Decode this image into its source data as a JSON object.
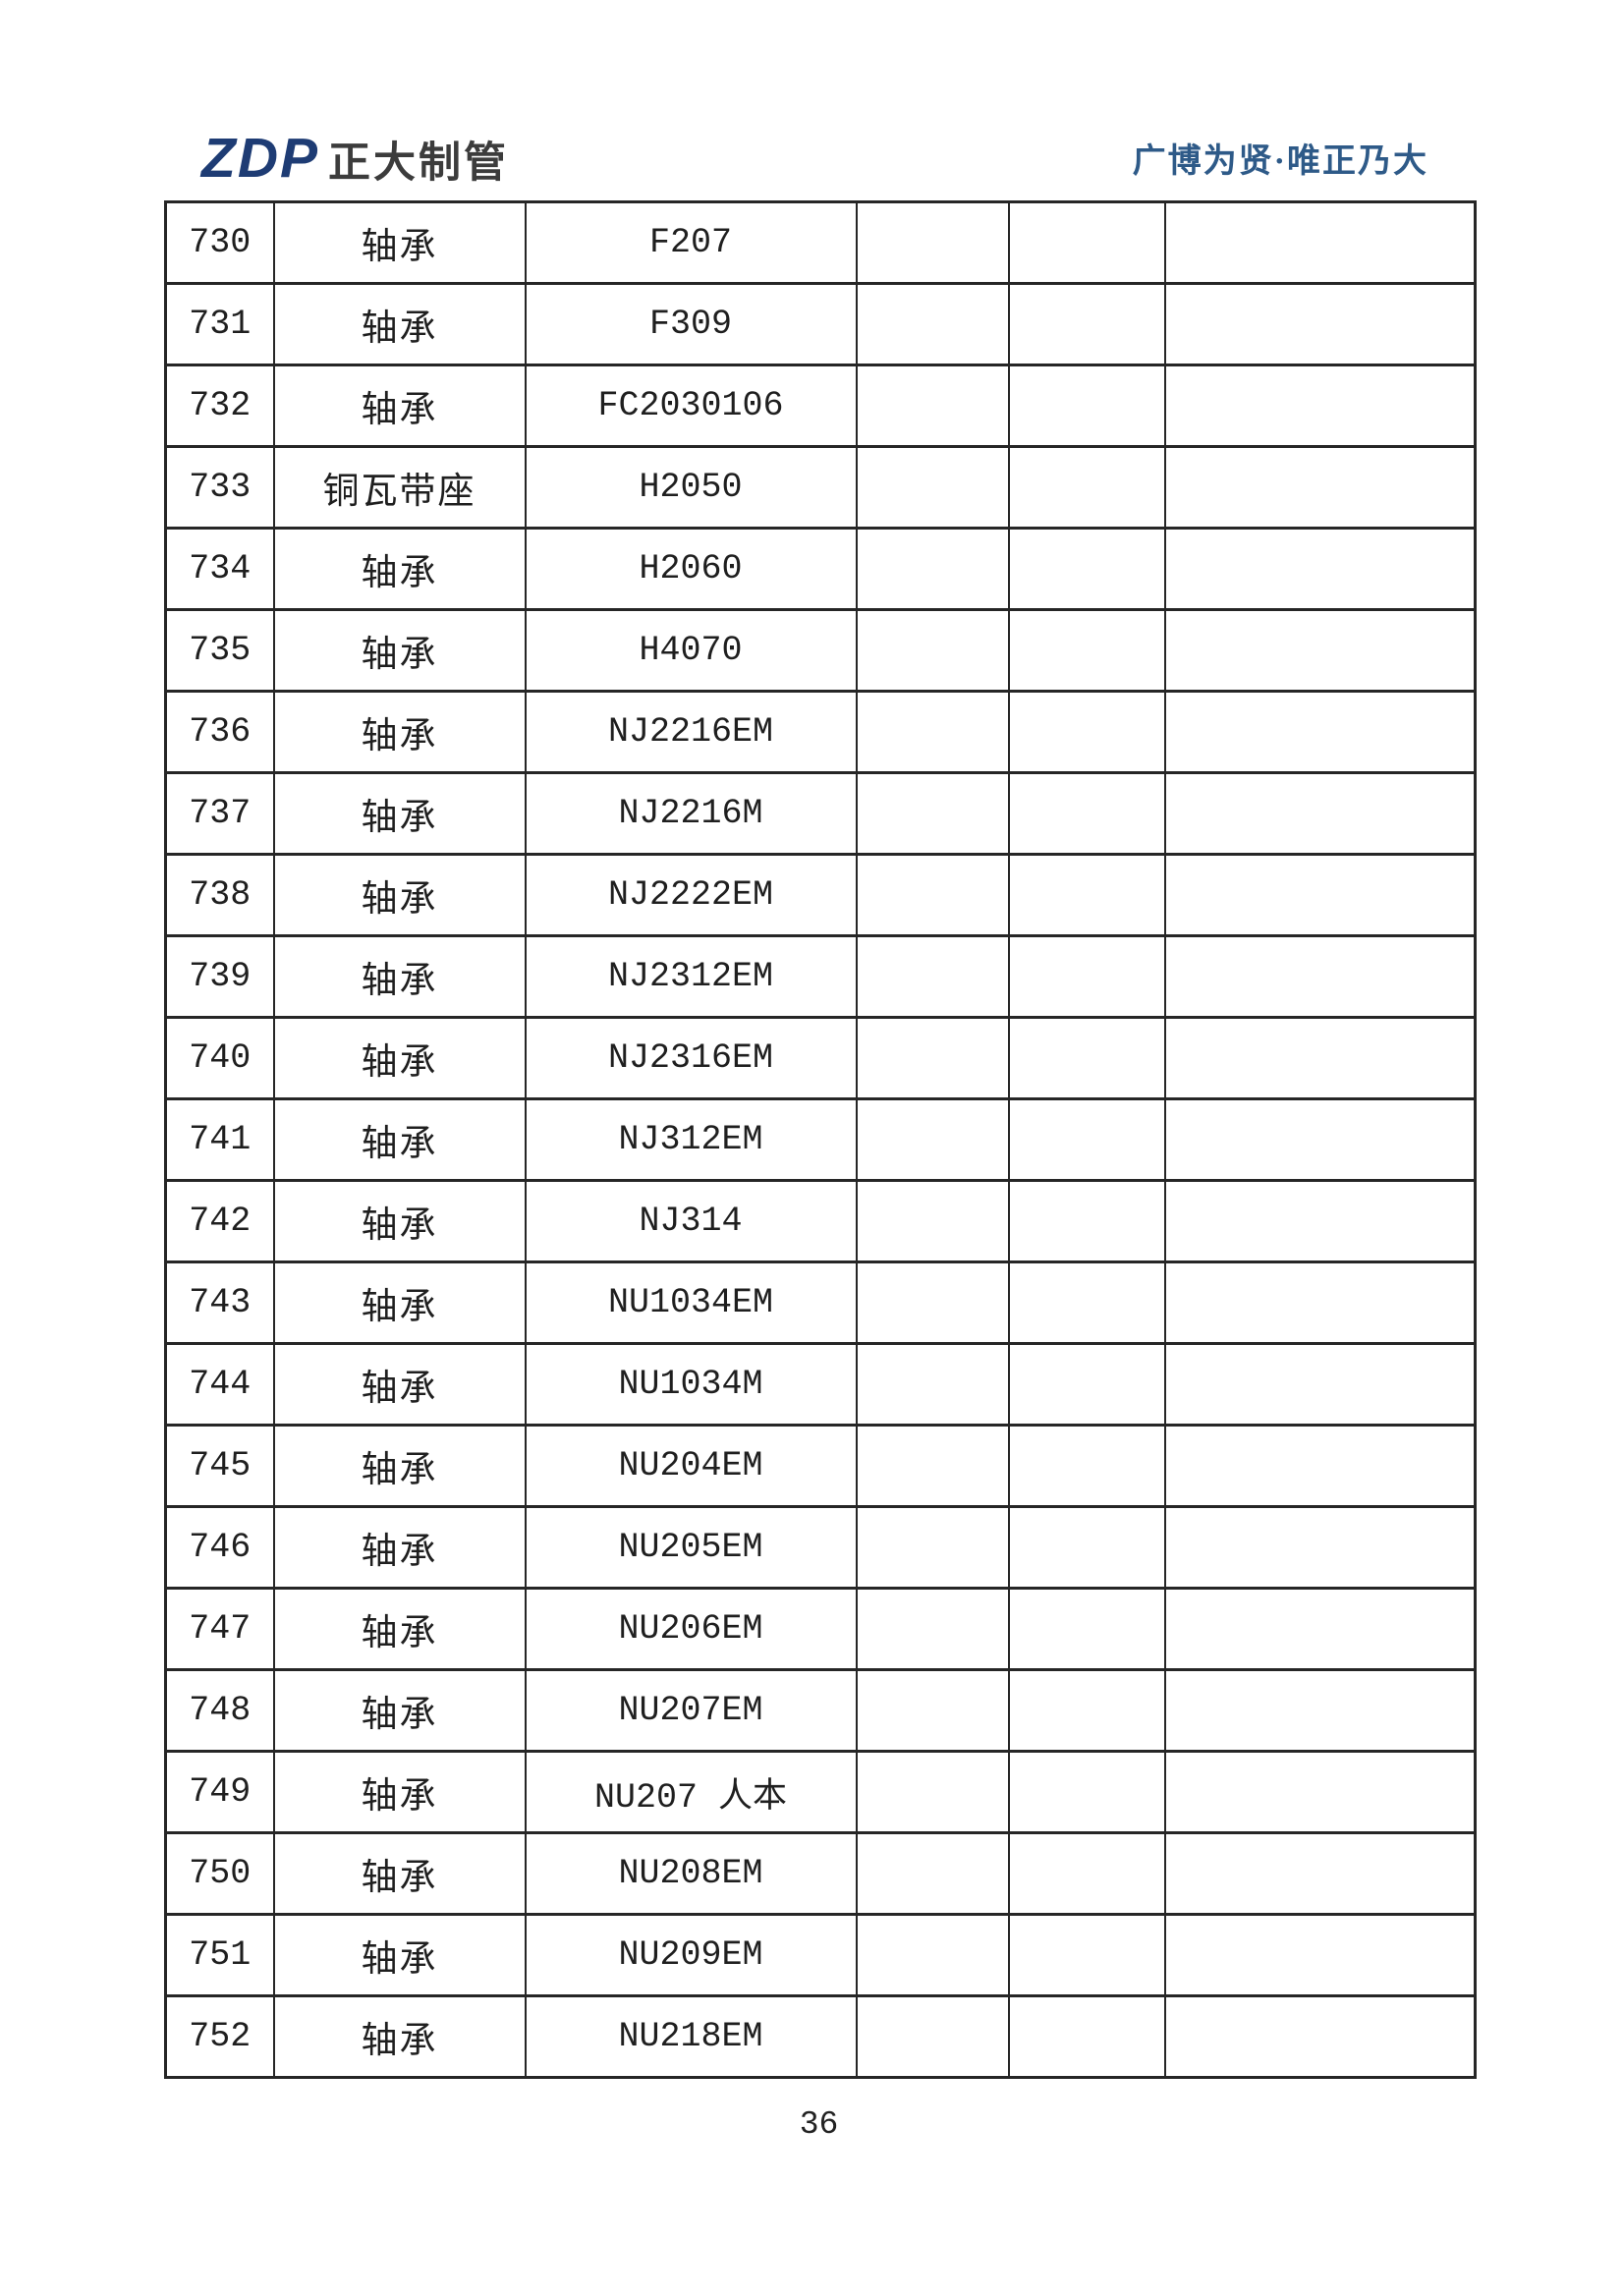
{
  "header": {
    "logo_mark": "ZDP",
    "logo_company_name": "正大制管",
    "slogan": "广博为贤·唯正乃大"
  },
  "table": {
    "column_keys": [
      "row-index",
      "item-name",
      "model-spec",
      "empty-col-1",
      "empty-col-2",
      "empty-col-3"
    ],
    "rows": [
      [
        "730",
        "轴承",
        "F207",
        "",
        "",
        ""
      ],
      [
        "731",
        "轴承",
        "F309",
        "",
        "",
        ""
      ],
      [
        "732",
        "轴承",
        "FC2030106",
        "",
        "",
        ""
      ],
      [
        "733",
        "铜瓦带座",
        "H2050",
        "",
        "",
        ""
      ],
      [
        "734",
        "轴承",
        "H2060",
        "",
        "",
        ""
      ],
      [
        "735",
        "轴承",
        "H4070",
        "",
        "",
        ""
      ],
      [
        "736",
        "轴承",
        "NJ2216EM",
        "",
        "",
        ""
      ],
      [
        "737",
        "轴承",
        "NJ2216M",
        "",
        "",
        ""
      ],
      [
        "738",
        "轴承",
        "NJ2222EM",
        "",
        "",
        ""
      ],
      [
        "739",
        "轴承",
        "NJ2312EM",
        "",
        "",
        ""
      ],
      [
        "740",
        "轴承",
        "NJ2316EM",
        "",
        "",
        ""
      ],
      [
        "741",
        "轴承",
        "NJ312EM",
        "",
        "",
        ""
      ],
      [
        "742",
        "轴承",
        "NJ314",
        "",
        "",
        ""
      ],
      [
        "743",
        "轴承",
        "NU1034EM",
        "",
        "",
        ""
      ],
      [
        "744",
        "轴承",
        "NU1034M",
        "",
        "",
        ""
      ],
      [
        "745",
        "轴承",
        "NU204EM",
        "",
        "",
        ""
      ],
      [
        "746",
        "轴承",
        "NU205EM",
        "",
        "",
        ""
      ],
      [
        "747",
        "轴承",
        "NU206EM",
        "",
        "",
        ""
      ],
      [
        "748",
        "轴承",
        "NU207EM",
        "",
        "",
        ""
      ],
      [
        "749",
        "轴承",
        "NU207 人本",
        "",
        "",
        ""
      ],
      [
        "750",
        "轴承",
        "NU208EM",
        "",
        "",
        ""
      ],
      [
        "751",
        "轴承",
        "NU209EM",
        "",
        "",
        ""
      ],
      [
        "752",
        "轴承",
        "NU218EM",
        "",
        "",
        ""
      ]
    ]
  },
  "footer": {
    "page_number": "36"
  },
  "colors": {
    "logo_navy": "#1e3c74",
    "logo_gray": "#3c3c3c",
    "slogan_blue": "#2e5a88",
    "table_border": "#262626",
    "text": "#1f1f1f"
  }
}
